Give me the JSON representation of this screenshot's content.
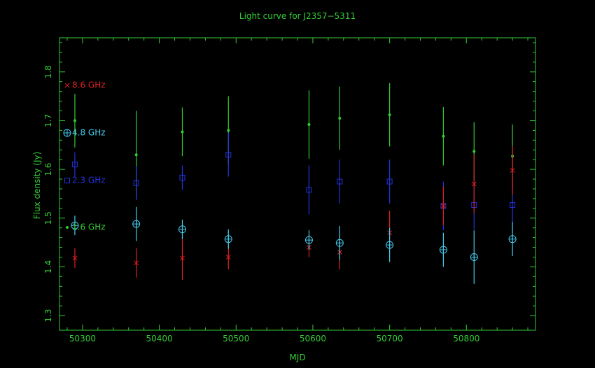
{
  "colors": {
    "background": "#000000",
    "axis": "#33cc33",
    "s86": "#e02020",
    "s48": "#44ccee",
    "s23": "#2233dd",
    "s16": "#33cc33",
    "title": "#33cc33"
  },
  "chart_data": {
    "type": "scatter",
    "title": "Light curve for J2357−5311",
    "xlabel": "MJD",
    "ylabel": "Flux density (Jy)",
    "xlim": [
      50270,
      50890
    ],
    "ylim": [
      1.27,
      1.87
    ],
    "xticks": [
      50300,
      50400,
      50500,
      50600,
      50700,
      50800
    ],
    "yticks": [
      1.3,
      1.4,
      1.5,
      1.6,
      1.7,
      1.8
    ],
    "grid": false,
    "legend_position": "left, inside plot",
    "series": [
      {
        "name": "8.6 GHz",
        "marker": "x",
        "color": "#e02020",
        "x": [
          50290,
          50370,
          50430,
          50490,
          50595,
          50635,
          50700,
          50770,
          50810,
          50860
        ],
        "y": [
          1.418,
          1.408,
          1.418,
          1.42,
          1.44,
          1.43,
          1.47,
          1.525,
          1.57,
          1.598
        ],
        "err": [
          0.02,
          0.03,
          0.045,
          0.025,
          0.02,
          0.035,
          0.045,
          0.04,
          0.06,
          0.05
        ]
      },
      {
        "name": "4.8 GHz",
        "marker": "circle",
        "color": "#44ccee",
        "x": [
          50290,
          50370,
          50430,
          50490,
          50595,
          50635,
          50700,
          50770,
          50810,
          50860
        ],
        "y": [
          1.485,
          1.488,
          1.477,
          1.457,
          1.455,
          1.449,
          1.445,
          1.435,
          1.42,
          1.457
        ],
        "err": [
          0.02,
          0.035,
          0.02,
          0.02,
          0.02,
          0.035,
          0.035,
          0.035,
          0.055,
          0.035
        ]
      },
      {
        "name": "2.3 GHz",
        "marker": "square",
        "color": "#2233dd",
        "x": [
          50290,
          50370,
          50430,
          50490,
          50595,
          50635,
          50700,
          50770,
          50810,
          50860
        ],
        "y": [
          1.61,
          1.572,
          1.583,
          1.63,
          1.558,
          1.575,
          1.575,
          1.525,
          1.527,
          1.527
        ],
        "err": [
          0.025,
          0.035,
          0.025,
          0.045,
          0.05,
          0.045,
          0.045,
          0.05,
          0.05,
          0.04
        ]
      },
      {
        "name": "1.6 GHz",
        "marker": "dot",
        "color": "#33cc33",
        "x": [
          50290,
          50370,
          50430,
          50490,
          50595,
          50635,
          50700,
          50770,
          50810,
          50860
        ],
        "y": [
          1.7,
          1.63,
          1.677,
          1.68,
          1.692,
          1.705,
          1.712,
          1.668,
          1.637,
          1.627
        ],
        "err": [
          0.055,
          0.09,
          0.05,
          0.07,
          0.07,
          0.065,
          0.065,
          0.06,
          0.06,
          0.065
        ]
      }
    ]
  }
}
